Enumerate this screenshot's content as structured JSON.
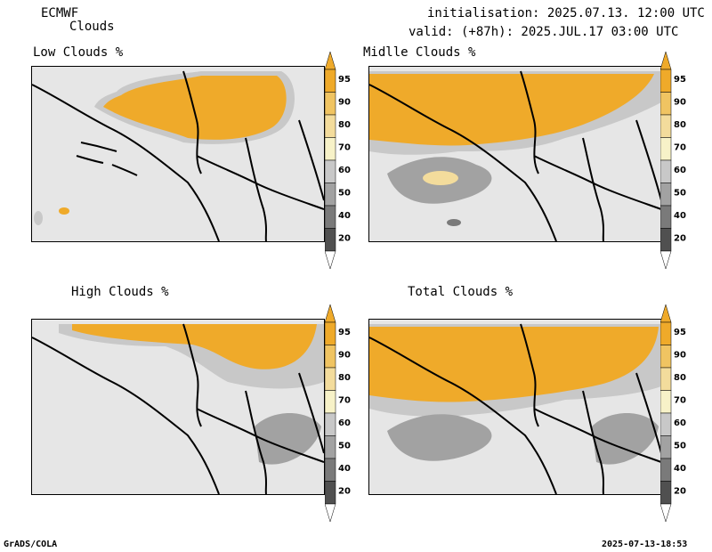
{
  "header": {
    "model": "ECMWF",
    "product": "Clouds",
    "init": "initialisation: 2025.07.13. 12:00 UTC",
    "valid": "valid: (+87h): 2025.JUL.17 03:00 UTC"
  },
  "panels": {
    "low": "Low Clouds %",
    "middle": "Midlle Clouds %",
    "high": "High Clouds %",
    "total": "Total Clouds %"
  },
  "colorbar": {
    "levels": [
      "95",
      "90",
      "80",
      "70",
      "60",
      "50",
      "40",
      "20"
    ],
    "colors": [
      "#efaa2a",
      "#f0c462",
      "#f3dc9c",
      "#f7f2c8",
      "#c8c8c8",
      "#a2a2a2",
      "#7a7a7a",
      "#505050"
    ]
  },
  "footer": {
    "left": "GrADS/COLA",
    "right": "2025-07-13-18:53"
  }
}
